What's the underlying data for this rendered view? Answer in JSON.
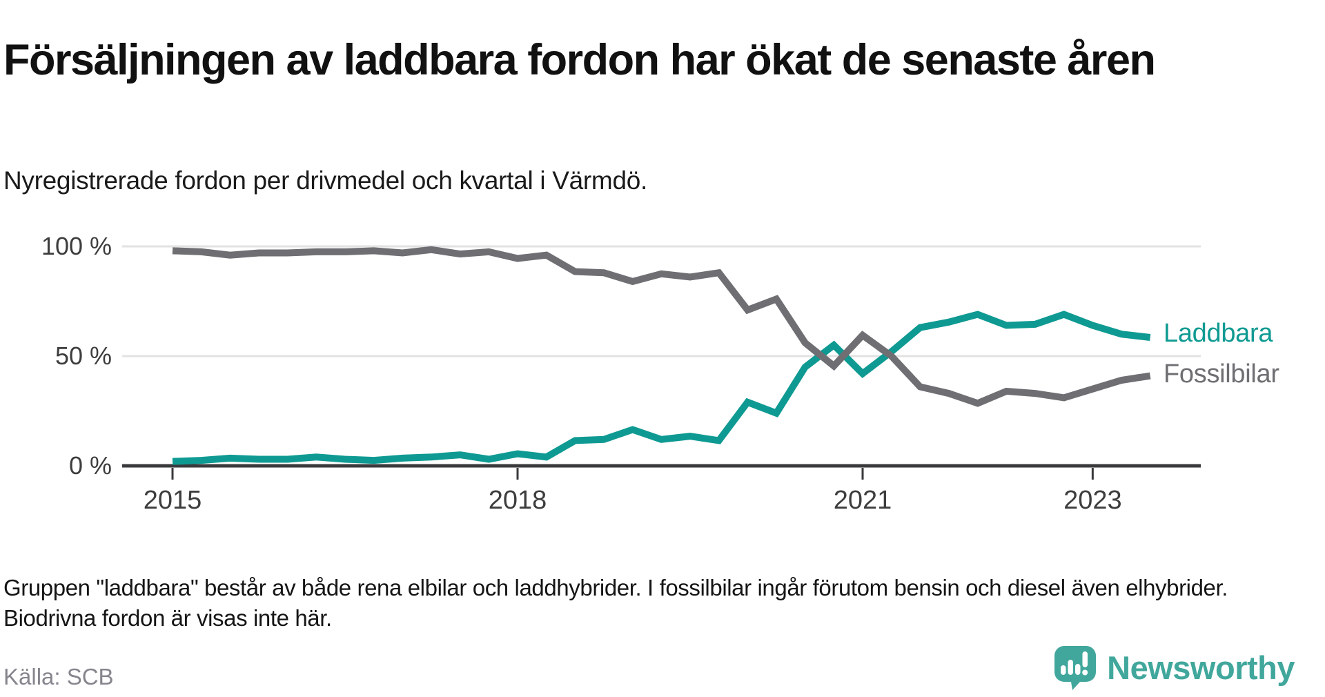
{
  "header": {
    "title": "Försäljningen av laddbara fordon har ökat de senaste åren",
    "subtitle": "Nyregistrerade fordon per drivmedel och kvartal i Värmdö."
  },
  "chart_data": {
    "type": "line",
    "title": "Försäljningen av laddbara fordon har ökat de senaste åren",
    "subtitle": "Nyregistrerade fordon per drivmedel och kvartal i Värmdö.",
    "x_unit": "kvartal",
    "x": [
      "2015 Q1",
      "2015 Q2",
      "2015 Q3",
      "2015 Q4",
      "2016 Q1",
      "2016 Q2",
      "2016 Q3",
      "2016 Q4",
      "2017 Q1",
      "2017 Q2",
      "2017 Q3",
      "2017 Q4",
      "2018 Q1",
      "2018 Q2",
      "2018 Q3",
      "2018 Q4",
      "2019 Q1",
      "2019 Q2",
      "2019 Q3",
      "2019 Q4",
      "2020 Q1",
      "2020 Q2",
      "2020 Q3",
      "2020 Q4",
      "2021 Q1",
      "2021 Q2",
      "2021 Q3",
      "2021 Q4",
      "2022 Q1",
      "2022 Q2",
      "2022 Q3",
      "2022 Q4",
      "2023 Q1",
      "2023 Q2",
      "2023 Q3"
    ],
    "series": [
      {
        "name": "Laddbara",
        "color": "#0e9a92",
        "values": [
          2,
          2.5,
          3.5,
          3,
          3,
          4,
          3,
          2.5,
          3.5,
          4,
          5,
          3,
          5.5,
          4,
          11.5,
          12,
          16.5,
          12,
          13.5,
          11.5,
          29,
          24,
          45,
          55,
          42,
          52,
          63,
          65.5,
          69,
          64,
          64.5,
          69,
          64,
          60,
          58.5
        ]
      },
      {
        "name": "Fossilbilar",
        "color": "#6e6e73",
        "values": [
          98,
          97.5,
          96,
          97,
          97,
          97.5,
          97.5,
          98,
          97,
          98.5,
          96.5,
          97.5,
          94.5,
          96,
          88.5,
          88,
          84,
          87.5,
          86,
          88,
          71,
          76,
          56,
          45.5,
          59.5,
          50,
          36,
          33,
          28.5,
          34,
          33,
          31,
          35,
          39,
          41
        ]
      }
    ],
    "y_ticks": [
      {
        "value": 0,
        "label": "0 %"
      },
      {
        "value": 50,
        "label": "50 %"
      },
      {
        "value": 100,
        "label": "100 %"
      }
    ],
    "x_ticks": [
      {
        "index": 0,
        "label": "2015"
      },
      {
        "index": 12,
        "label": "2018"
      },
      {
        "index": 24,
        "label": "2021"
      },
      {
        "index": 32,
        "label": "2023"
      }
    ],
    "ylim": [
      0,
      100
    ],
    "grid": "horizontal",
    "legend_position": "right-of-line-end"
  },
  "footnote": "Gruppen \"laddbara\" består av både rena elbilar och laddhybrider. I fossilbilar ingår förutom bensin och diesel även elhybrider. Biodrivna fordon är visas inte här.",
  "source": "Källa: SCB",
  "logo": {
    "text": "Newsworthy"
  },
  "colors": {
    "laddbara": "#0e9a92",
    "fossilbilar": "#6e6e73",
    "axis_text": "#3d3d3d",
    "grid_line": "#e2e2e2",
    "axis_line": "#3a3a3c",
    "logo_teal": "#41a79c",
    "source_text": "#85858d",
    "title_text": "#111111"
  }
}
